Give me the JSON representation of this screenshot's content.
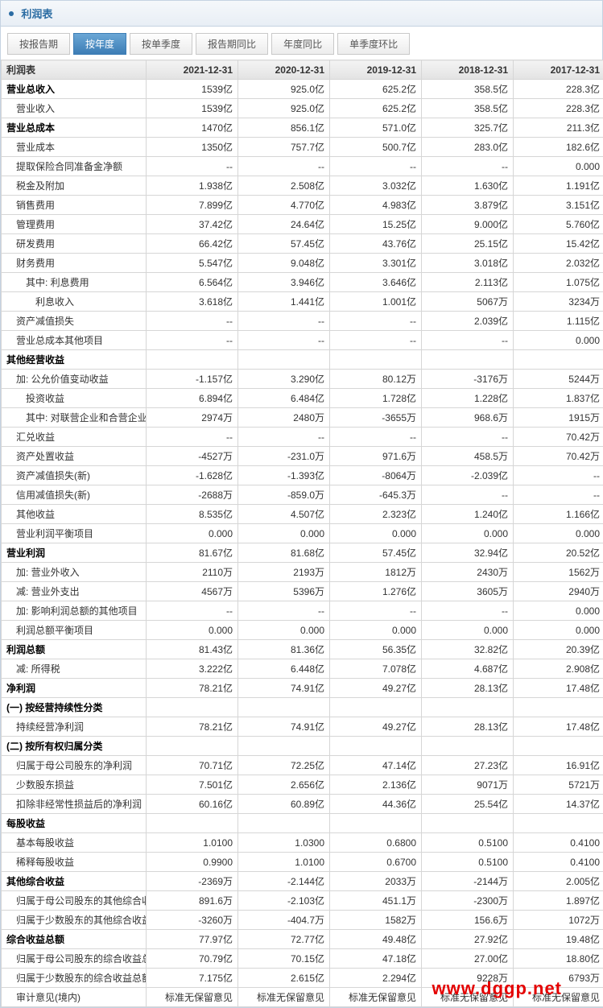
{
  "panel": {
    "title": "利润表"
  },
  "tabs": [
    {
      "label": "按报告期",
      "active": false
    },
    {
      "label": "按年度",
      "active": true
    },
    {
      "label": "按单季度",
      "active": false
    },
    {
      "label": "报告期同比",
      "active": false
    },
    {
      "label": "年度同比",
      "active": false
    },
    {
      "label": "单季度环比",
      "active": false
    }
  ],
  "columns": [
    "利润表",
    "2021-12-31",
    "2020-12-31",
    "2019-12-31",
    "2018-12-31",
    "2017-12-31"
  ],
  "rows": [
    {
      "label": "营业总收入",
      "section": true,
      "v": [
        "1539亿",
        "925.0亿",
        "625.2亿",
        "358.5亿",
        "228.3亿"
      ]
    },
    {
      "label": "营业收入",
      "indent": 1,
      "v": [
        "1539亿",
        "925.0亿",
        "625.2亿",
        "358.5亿",
        "228.3亿"
      ]
    },
    {
      "label": "营业总成本",
      "section": true,
      "v": [
        "1470亿",
        "856.1亿",
        "571.0亿",
        "325.7亿",
        "211.3亿"
      ]
    },
    {
      "label": "营业成本",
      "indent": 1,
      "v": [
        "1350亿",
        "757.7亿",
        "500.7亿",
        "283.0亿",
        "182.6亿"
      ]
    },
    {
      "label": "提取保险合同准备金净额",
      "indent": 1,
      "v": [
        "--",
        "--",
        "--",
        "--",
        "0.000"
      ]
    },
    {
      "label": "税金及附加",
      "indent": 1,
      "v": [
        "1.938亿",
        "2.508亿",
        "3.032亿",
        "1.630亿",
        "1.191亿"
      ]
    },
    {
      "label": "销售费用",
      "indent": 1,
      "v": [
        "7.899亿",
        "4.770亿",
        "4.983亿",
        "3.879亿",
        "3.151亿"
      ]
    },
    {
      "label": "管理费用",
      "indent": 1,
      "v": [
        "37.42亿",
        "24.64亿",
        "15.25亿",
        "9.000亿",
        "5.760亿"
      ]
    },
    {
      "label": "研发费用",
      "indent": 1,
      "v": [
        "66.42亿",
        "57.45亿",
        "43.76亿",
        "25.15亿",
        "15.42亿"
      ]
    },
    {
      "label": "财务费用",
      "indent": 1,
      "v": [
        "5.547亿",
        "9.048亿",
        "3.301亿",
        "3.018亿",
        "2.032亿"
      ]
    },
    {
      "label": "其中: 利息费用",
      "indent": 2,
      "v": [
        "6.564亿",
        "3.946亿",
        "3.646亿",
        "2.113亿",
        "1.075亿"
      ]
    },
    {
      "label": "利息收入",
      "indent": 3,
      "v": [
        "3.618亿",
        "1.441亿",
        "1.001亿",
        "5067万",
        "3234万"
      ]
    },
    {
      "label": "资产减值损失",
      "indent": 1,
      "v": [
        "--",
        "--",
        "--",
        "2.039亿",
        "1.115亿"
      ]
    },
    {
      "label": "营业总成本其他项目",
      "indent": 1,
      "v": [
        "--",
        "--",
        "--",
        "--",
        "0.000"
      ]
    },
    {
      "label": "其他经营收益",
      "section": true,
      "v": [
        "",
        "",
        "",
        "",
        ""
      ]
    },
    {
      "label": "加: 公允价值变动收益",
      "indent": 1,
      "v": [
        "-1.157亿",
        "3.290亿",
        "80.12万",
        "-3176万",
        "5244万"
      ]
    },
    {
      "label": "投资收益",
      "indent": 2,
      "v": [
        "6.894亿",
        "6.484亿",
        "1.728亿",
        "1.228亿",
        "1.837亿"
      ]
    },
    {
      "label": "其中: 对联营企业和合营企业的投资收益",
      "indent": 2,
      "v": [
        "2974万",
        "2480万",
        "-3655万",
        "968.6万",
        "1915万"
      ]
    },
    {
      "label": "汇兑收益",
      "indent": 1,
      "v": [
        "--",
        "--",
        "--",
        "--",
        "70.42万"
      ]
    },
    {
      "label": "资产处置收益",
      "indent": 1,
      "v": [
        "-4527万",
        "-231.0万",
        "971.6万",
        "458.5万",
        "70.42万"
      ]
    },
    {
      "label": "资产减值损失(新)",
      "indent": 1,
      "v": [
        "-1.628亿",
        "-1.393亿",
        "-8064万",
        "-2.039亿",
        "--"
      ]
    },
    {
      "label": "信用减值损失(新)",
      "indent": 1,
      "v": [
        "-2688万",
        "-859.0万",
        "-645.3万",
        "--",
        "--"
      ]
    },
    {
      "label": "其他收益",
      "indent": 1,
      "v": [
        "8.535亿",
        "4.507亿",
        "2.323亿",
        "1.240亿",
        "1.166亿"
      ]
    },
    {
      "label": "营业利润平衡项目",
      "indent": 1,
      "v": [
        "0.000",
        "0.000",
        "0.000",
        "0.000",
        "0.000"
      ]
    },
    {
      "label": "营业利润",
      "section": true,
      "v": [
        "81.67亿",
        "81.68亿",
        "57.45亿",
        "32.94亿",
        "20.52亿"
      ]
    },
    {
      "label": "加: 营业外收入",
      "indent": 1,
      "v": [
        "2110万",
        "2193万",
        "1812万",
        "2430万",
        "1562万"
      ]
    },
    {
      "label": "减: 营业外支出",
      "indent": 1,
      "v": [
        "4567万",
        "5396万",
        "1.276亿",
        "3605万",
        "2940万"
      ]
    },
    {
      "label": "加: 影响利润总额的其他项目",
      "indent": 1,
      "v": [
        "--",
        "--",
        "--",
        "--",
        "0.000"
      ]
    },
    {
      "label": "利润总额平衡项目",
      "indent": 1,
      "v": [
        "0.000",
        "0.000",
        "0.000",
        "0.000",
        "0.000"
      ]
    },
    {
      "label": "利润总额",
      "section": true,
      "v": [
        "81.43亿",
        "81.36亿",
        "56.35亿",
        "32.82亿",
        "20.39亿"
      ]
    },
    {
      "label": "减: 所得税",
      "indent": 1,
      "v": [
        "3.222亿",
        "6.448亿",
        "7.078亿",
        "4.687亿",
        "2.908亿"
      ]
    },
    {
      "label": "净利润",
      "section": true,
      "v": [
        "78.21亿",
        "74.91亿",
        "49.27亿",
        "28.13亿",
        "17.48亿"
      ]
    },
    {
      "label": "(一) 按经营持续性分类",
      "section": true,
      "v": [
        "",
        "",
        "",
        "",
        ""
      ]
    },
    {
      "label": "持续经营净利润",
      "indent": 1,
      "v": [
        "78.21亿",
        "74.91亿",
        "49.27亿",
        "28.13亿",
        "17.48亿"
      ]
    },
    {
      "label": "(二) 按所有权归属分类",
      "section": true,
      "v": [
        "",
        "",
        "",
        "",
        ""
      ]
    },
    {
      "label": "归属于母公司股东的净利润",
      "indent": 1,
      "v": [
        "70.71亿",
        "72.25亿",
        "47.14亿",
        "27.23亿",
        "16.91亿"
      ]
    },
    {
      "label": "少数股东损益",
      "indent": 1,
      "v": [
        "7.501亿",
        "2.656亿",
        "2.136亿",
        "9071万",
        "5721万"
      ]
    },
    {
      "label": "扣除非经常性损益后的净利润",
      "indent": 1,
      "v": [
        "60.16亿",
        "60.89亿",
        "44.36亿",
        "25.54亿",
        "14.37亿"
      ]
    },
    {
      "label": "每股收益",
      "section": true,
      "v": [
        "",
        "",
        "",
        "",
        ""
      ]
    },
    {
      "label": "基本每股收益",
      "indent": 1,
      "v": [
        "1.0100",
        "1.0300",
        "0.6800",
        "0.5100",
        "0.4100"
      ]
    },
    {
      "label": "稀释每股收益",
      "indent": 1,
      "v": [
        "0.9900",
        "1.0100",
        "0.6700",
        "0.5100",
        "0.4100"
      ]
    },
    {
      "label": "其他综合收益",
      "section": true,
      "v": [
        "-2369万",
        "-2.144亿",
        "2033万",
        "-2144万",
        "2.005亿"
      ]
    },
    {
      "label": "归属于母公司股东的其他综合收益",
      "indent": 1,
      "v": [
        "891.6万",
        "-2.103亿",
        "451.1万",
        "-2300万",
        "1.897亿"
      ]
    },
    {
      "label": "归属于少数股东的其他综合收益",
      "indent": 1,
      "v": [
        "-3260万",
        "-404.7万",
        "1582万",
        "156.6万",
        "1072万"
      ]
    },
    {
      "label": "综合收益总额",
      "section": true,
      "v": [
        "77.97亿",
        "72.77亿",
        "49.48亿",
        "27.92亿",
        "19.48亿"
      ]
    },
    {
      "label": "归属于母公司股东的综合收益总额",
      "indent": 1,
      "v": [
        "70.79亿",
        "70.15亿",
        "47.18亿",
        "27.00亿",
        "18.80亿"
      ]
    },
    {
      "label": "归属于少数股东的综合收益总额",
      "indent": 1,
      "v": [
        "7.175亿",
        "2.615亿",
        "2.294亿",
        "9228万",
        "6793万"
      ]
    },
    {
      "label": "审计意见(境内)",
      "indent": 1,
      "v": [
        "标准无保留意见",
        "标准无保留意见",
        "标准无保留意见",
        "标准无保留意见",
        "标准无保留意见"
      ]
    }
  ],
  "watermark": "www.dggp.net"
}
